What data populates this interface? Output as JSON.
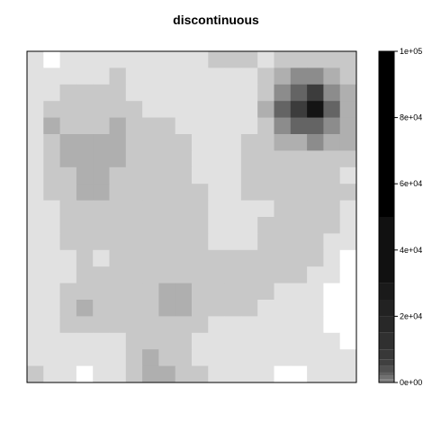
{
  "chart_data": {
    "type": "heatmap",
    "title": "discontinuous",
    "xlabel": "",
    "ylabel": "",
    "rows": 20,
    "cols": 20,
    "grid": false,
    "legend": "right",
    "colorbar": {
      "range": [
        0,
        100000
      ],
      "tick_values": [
        0,
        20000,
        40000,
        60000,
        80000,
        100000
      ],
      "tick_labels": [
        "0e+00",
        "2e+04",
        "4e+04",
        "6e+04",
        "8e+04",
        "1e+05"
      ],
      "breaks": [
        0,
        1000,
        2000,
        3000,
        5000,
        7000,
        10000,
        15000,
        20000,
        25000,
        30000,
        50000,
        100000
      ],
      "colors": [
        "#808080",
        "#707070",
        "#606060",
        "#505050",
        "#404040",
        "#383838",
        "#303030",
        "#282828",
        "#222222",
        "#1a1a1a",
        "#111111",
        "#000000"
      ],
      "levels": [
        {
          "value": 0,
          "color": "#ffffff"
        },
        {
          "value": 10,
          "color": "#e1e1e1"
        },
        {
          "value": 20,
          "color": "#c8c8c8"
        },
        {
          "value": 40,
          "color": "#afafaf"
        },
        {
          "value": 80,
          "color": "#8c8c8c"
        },
        {
          "value": 150,
          "color": "#646464"
        },
        {
          "value": 400,
          "color": "#3c3c3c"
        },
        {
          "value": 1000,
          "color": "#141414"
        }
      ]
    },
    "z": [
      [
        1,
        0,
        1,
        1,
        1,
        1,
        1,
        1,
        1,
        1,
        1,
        2,
        2,
        2,
        1,
        2,
        2,
        2,
        2,
        2
      ],
      [
        1,
        1,
        1,
        1,
        1,
        2,
        1,
        1,
        1,
        1,
        1,
        1,
        1,
        1,
        2,
        3,
        4,
        4,
        3,
        2
      ],
      [
        1,
        1,
        2,
        2,
        2,
        2,
        1,
        1,
        1,
        1,
        1,
        1,
        1,
        1,
        2,
        4,
        5,
        6,
        4,
        3
      ],
      [
        1,
        2,
        2,
        2,
        2,
        2,
        2,
        1,
        1,
        1,
        1,
        1,
        1,
        1,
        3,
        5,
        6,
        7,
        5,
        3
      ],
      [
        1,
        3,
        2,
        2,
        2,
        3,
        2,
        2,
        2,
        1,
        1,
        1,
        1,
        1,
        2,
        4,
        5,
        5,
        4,
        3
      ],
      [
        1,
        2,
        3,
        3,
        3,
        3,
        2,
        2,
        2,
        2,
        1,
        1,
        1,
        2,
        2,
        3,
        3,
        4,
        3,
        3
      ],
      [
        1,
        2,
        3,
        3,
        3,
        3,
        2,
        2,
        2,
        2,
        1,
        1,
        1,
        2,
        2,
        2,
        2,
        2,
        2,
        2
      ],
      [
        1,
        2,
        2,
        3,
        3,
        2,
        2,
        2,
        2,
        2,
        1,
        1,
        1,
        2,
        2,
        2,
        2,
        2,
        2,
        1
      ],
      [
        1,
        2,
        2,
        3,
        3,
        2,
        2,
        2,
        2,
        2,
        2,
        1,
        1,
        2,
        2,
        2,
        2,
        2,
        2,
        2
      ],
      [
        1,
        1,
        2,
        2,
        2,
        2,
        2,
        2,
        2,
        2,
        2,
        1,
        1,
        1,
        1,
        2,
        2,
        2,
        2,
        1
      ],
      [
        1,
        1,
        2,
        2,
        2,
        2,
        2,
        2,
        2,
        2,
        2,
        1,
        1,
        1,
        2,
        2,
        2,
        2,
        2,
        1
      ],
      [
        1,
        1,
        2,
        2,
        2,
        2,
        2,
        2,
        2,
        2,
        2,
        1,
        1,
        1,
        2,
        2,
        2,
        2,
        1,
        1
      ],
      [
        1,
        1,
        1,
        2,
        1,
        2,
        2,
        2,
        2,
        2,
        2,
        2,
        2,
        2,
        2,
        2,
        2,
        2,
        1,
        0
      ],
      [
        1,
        1,
        1,
        2,
        2,
        2,
        2,
        2,
        2,
        2,
        2,
        2,
        2,
        2,
        2,
        2,
        2,
        1,
        1,
        0
      ],
      [
        1,
        1,
        2,
        2,
        2,
        2,
        2,
        2,
        3,
        3,
        2,
        2,
        2,
        2,
        2,
        1,
        1,
        1,
        0,
        0
      ],
      [
        1,
        1,
        2,
        3,
        2,
        2,
        2,
        2,
        3,
        3,
        2,
        2,
        2,
        2,
        1,
        1,
        1,
        1,
        0,
        0
      ],
      [
        1,
        1,
        2,
        2,
        2,
        2,
        2,
        2,
        2,
        2,
        2,
        1,
        1,
        1,
        1,
        1,
        1,
        1,
        0,
        0
      ],
      [
        1,
        1,
        1,
        1,
        1,
        1,
        2,
        2,
        2,
        2,
        1,
        1,
        1,
        1,
        1,
        1,
        1,
        1,
        1,
        0
      ],
      [
        1,
        1,
        1,
        1,
        1,
        1,
        2,
        3,
        2,
        2,
        1,
        1,
        1,
        1,
        1,
        1,
        1,
        1,
        1,
        1
      ],
      [
        2,
        1,
        1,
        0,
        1,
        1,
        2,
        3,
        3,
        2,
        2,
        1,
        1,
        1,
        1,
        0,
        0,
        1,
        1,
        1
      ]
    ]
  }
}
